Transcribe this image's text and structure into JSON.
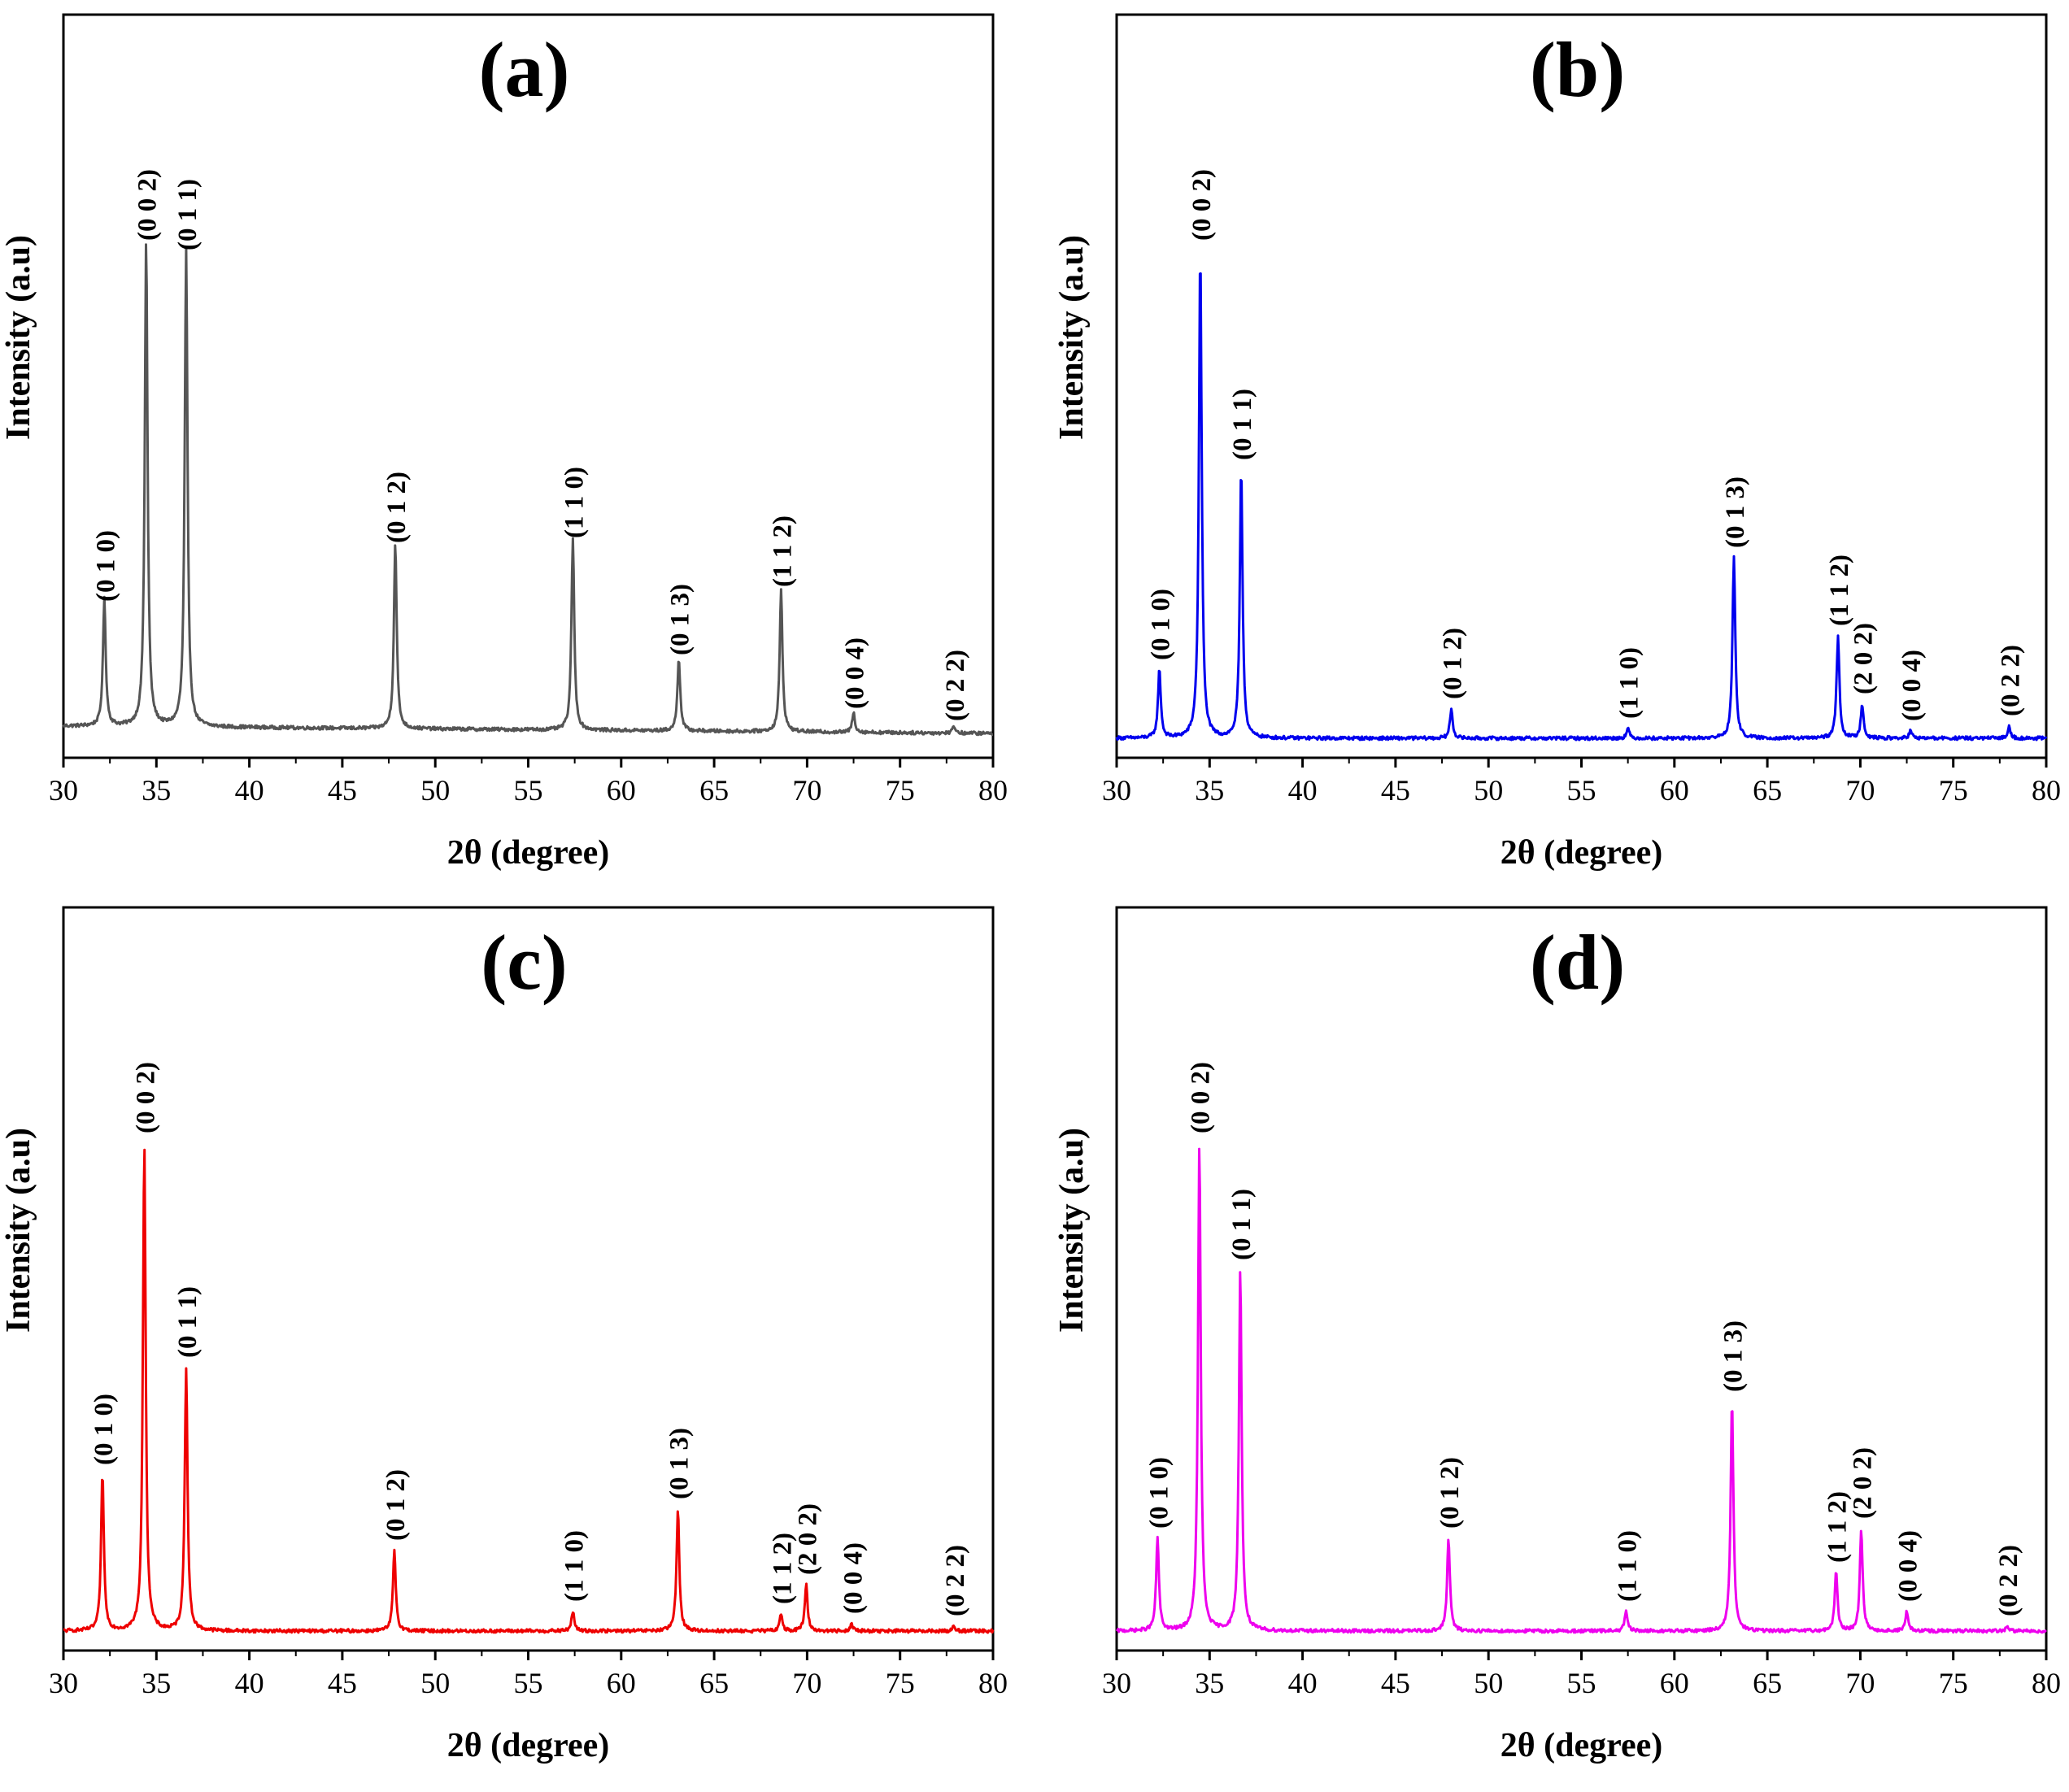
{
  "chart_data": [
    {
      "type": "line",
      "title": "(a)",
      "xlabel": "2θ (degree)",
      "ylabel": "Intensity (a.u)",
      "xlim": [
        30,
        80
      ],
      "ylim": [
        0,
        1.1
      ],
      "xticks": [
        "30",
        "35",
        "40",
        "45",
        "50",
        "55",
        "60",
        "65",
        "70",
        "75",
        "80"
      ],
      "color": "#555555",
      "baseline": 0.025,
      "peaks": [
        {
          "label": "(0 1 0)",
          "x": 32.2,
          "y": 0.26
        },
        {
          "label": "(0 0 2)",
          "x": 34.45,
          "y": 1.0
        },
        {
          "label": "(0 1 1)",
          "x": 36.6,
          "y": 0.98
        },
        {
          "label": "(0 1 2)",
          "x": 47.85,
          "y": 0.38
        },
        {
          "label": "(1 1 0)",
          "x": 57.4,
          "y": 0.39
        },
        {
          "label": "(0 1 3)",
          "x": 63.1,
          "y": 0.15
        },
        {
          "label": "(1 1 2)",
          "x": 68.6,
          "y": 0.29
        },
        {
          "label": "(0 0 4)",
          "x": 72.5,
          "y": 0.04
        },
        {
          "label": "(0 2 2)",
          "x": 77.9,
          "y": 0.015
        }
      ]
    },
    {
      "type": "line",
      "title": "(b)",
      "xlabel": "2θ (degree)",
      "ylabel": "Intensity (a.u)",
      "xlim": [
        30,
        80
      ],
      "ylim": [
        0,
        1.1
      ],
      "xticks": [
        "30",
        "35",
        "40",
        "45",
        "50",
        "55",
        "60",
        "65",
        "70",
        "75",
        "80"
      ],
      "color": "#0000ee",
      "baseline": 0.0,
      "peaks": [
        {
          "label": "(0 1 0)",
          "x": 32.3,
          "y": 0.14
        },
        {
          "label": "(0 0 2)",
          "x": 34.5,
          "y": 1.0
        },
        {
          "label": "(0 1 1)",
          "x": 36.7,
          "y": 0.55
        },
        {
          "label": "(0 1 2)",
          "x": 48.0,
          "y": 0.06
        },
        {
          "label": "(1 1 0)",
          "x": 57.5,
          "y": 0.02
        },
        {
          "label": "(0 1 3)",
          "x": 63.2,
          "y": 0.37
        },
        {
          "label": "(1 1 2)",
          "x": 68.8,
          "y": 0.21
        },
        {
          "label": "(2 0 2)",
          "x": 70.1,
          "y": 0.07
        },
        {
          "label": "(0 0 4)",
          "x": 72.7,
          "y": 0.015
        },
        {
          "label": "(0 2 2)",
          "x": 78.0,
          "y": 0.025
        }
      ]
    },
    {
      "type": "line",
      "title": "(c)",
      "xlabel": "2θ (degree)",
      "ylabel": "Intensity (a.u)",
      "xlim": [
        30,
        80
      ],
      "ylim": [
        0,
        1.1
      ],
      "xticks": [
        "30",
        "35",
        "40",
        "45",
        "50",
        "55",
        "60",
        "65",
        "70",
        "75",
        "80"
      ],
      "color": "#ee0000",
      "baseline": 0.0,
      "peaks": [
        {
          "label": "(0 1 0)",
          "x": 32.1,
          "y": 0.32
        },
        {
          "label": "(0 0 2)",
          "x": 34.35,
          "y": 1.0
        },
        {
          "label": "(0 1 1)",
          "x": 36.6,
          "y": 0.54
        },
        {
          "label": "(0 1 2)",
          "x": 47.8,
          "y": 0.165
        },
        {
          "label": "(1 1 0)",
          "x": 57.4,
          "y": 0.04
        },
        {
          "label": "(0 1 3)",
          "x": 63.05,
          "y": 0.25
        },
        {
          "label": "(1 1 2)",
          "x": 68.6,
          "y": 0.035
        },
        {
          "label": "(2 0 2)",
          "x": 69.95,
          "y": 0.095
        },
        {
          "label": "(0 0 4)",
          "x": 72.4,
          "y": 0.015
        },
        {
          "label": "(0 2 2)",
          "x": 77.9,
          "y": 0.01
        }
      ]
    },
    {
      "type": "line",
      "title": "(d)",
      "xlabel": "2θ (degree)",
      "ylabel": "Intensity (a.u)",
      "xlim": [
        30,
        80
      ],
      "ylim": [
        0,
        1.1
      ],
      "xticks": [
        "30",
        "35",
        "40",
        "45",
        "50",
        "55",
        "60",
        "65",
        "70",
        "75",
        "80"
      ],
      "color": "#ee00ee",
      "baseline": 0.0,
      "peaks": [
        {
          "label": "(0 1 0)",
          "x": 32.2,
          "y": 0.19
        },
        {
          "label": "(0 0 2)",
          "x": 34.45,
          "y": 1.0
        },
        {
          "label": "(0 1 1)",
          "x": 36.65,
          "y": 0.74
        },
        {
          "label": "(0 1 2)",
          "x": 47.85,
          "y": 0.19
        },
        {
          "label": "(1 1 0)",
          "x": 57.4,
          "y": 0.04
        },
        {
          "label": "(0 1 3)",
          "x": 63.1,
          "y": 0.47
        },
        {
          "label": "(1 1 2)",
          "x": 68.7,
          "y": 0.12
        },
        {
          "label": "(2 0 2)",
          "x": 70.05,
          "y": 0.21
        },
        {
          "label": "(0 0 4)",
          "x": 72.5,
          "y": 0.04
        },
        {
          "label": "(0 2 2)",
          "x": 77.9,
          "y": 0.01
        }
      ]
    }
  ]
}
